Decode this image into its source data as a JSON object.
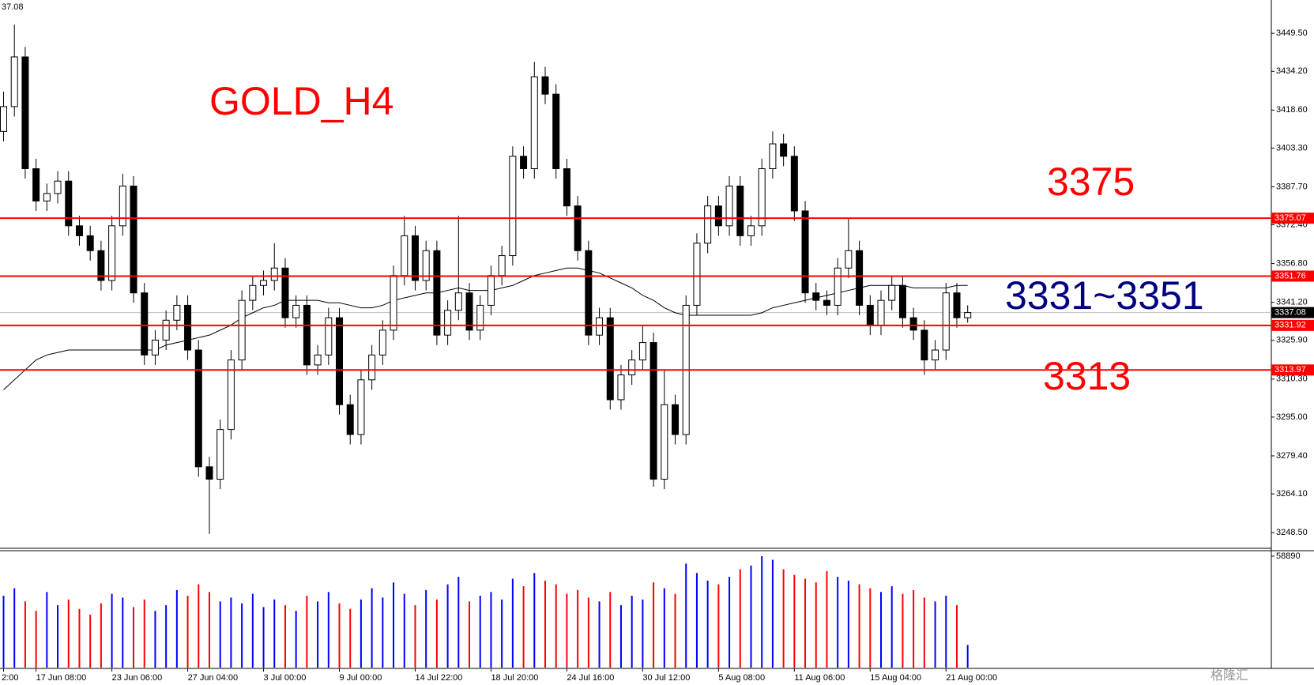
{
  "chart_data": {
    "type": "candlestick",
    "title": "GOLD_H4",
    "corner_label": "37.08",
    "annotations": [
      {
        "text": "3375",
        "color": "#ff0000"
      },
      {
        "text": "3331~3351",
        "color": "#000080"
      },
      {
        "text": "3313",
        "color": "#ff0000"
      }
    ],
    "watermark": "格隆汇",
    "categories": [
      "2:00",
      null,
      null,
      "17 Jun 08:00",
      null,
      null,
      null,
      null,
      null,
      null,
      "23 Jun 06:00",
      null,
      null,
      null,
      null,
      null,
      null,
      "27 Jun 04:00",
      null,
      null,
      null,
      null,
      null,
      null,
      "3 Jul 00:00",
      null,
      null,
      null,
      null,
      null,
      null,
      "9 Jul 00:00",
      null,
      null,
      null,
      null,
      null,
      null,
      "14 Jul 22:00",
      null,
      null,
      null,
      null,
      null,
      null,
      "18 Jul 20:00",
      null,
      null,
      null,
      null,
      null,
      null,
      "24 Jul 16:00",
      null,
      null,
      null,
      null,
      null,
      null,
      "30 Jul 12:00",
      null,
      null,
      null,
      null,
      null,
      null,
      "5 Aug 08:00",
      null,
      null,
      null,
      null,
      null,
      null,
      "11 Aug 06:00",
      null,
      null,
      null,
      null,
      null,
      null,
      "15 Aug 04:00",
      null,
      null,
      null,
      null,
      null,
      null,
      "21 Aug 00:00",
      null,
      null
    ],
    "open": [
      3410,
      3420,
      3440,
      3395,
      3382,
      3385,
      3390,
      3372,
      3368,
      3362,
      3350,
      3372,
      3388,
      3345,
      3320,
      3326,
      3334,
      3340,
      3322,
      3275,
      3270,
      3290,
      3318,
      3342,
      3348,
      3350,
      3355,
      3335,
      3340,
      3316,
      3320,
      3335,
      3300,
      3288,
      3310,
      3320,
      3330,
      3352,
      3368,
      3350,
      3362,
      3328,
      3338,
      3345,
      3330,
      3340,
      3352,
      3360,
      3400,
      3395,
      3432,
      3425,
      3395,
      3380,
      3362,
      3328,
      3335,
      3302,
      3312,
      3318,
      3325,
      3270,
      3300,
      3288,
      3340,
      3365,
      3380,
      3372,
      3388,
      3368,
      3372,
      3395,
      3405,
      3400,
      3378,
      3345,
      3342,
      3340,
      3355,
      3362,
      3340,
      3332,
      3342,
      3348,
      3335,
      3330,
      3318,
      3322,
      3345,
      3335
    ],
    "high": [
      3426,
      3453,
      3444,
      3399,
      3389,
      3394,
      3394,
      3376,
      3372,
      3366,
      3376,
      3393,
      3392,
      3349,
      3330,
      3338,
      3344,
      3344,
      3326,
      3279,
      3294,
      3322,
      3346,
      3352,
      3354,
      3365,
      3359,
      3344,
      3344,
      3324,
      3339,
      3339,
      3304,
      3314,
      3324,
      3334,
      3356,
      3376,
      3372,
      3366,
      3366,
      3342,
      3376,
      3349,
      3344,
      3356,
      3364,
      3404,
      3404,
      3438,
      3436,
      3429,
      3399,
      3384,
      3366,
      3339,
      3339,
      3316,
      3322,
      3332,
      3329,
      3314,
      3304,
      3344,
      3369,
      3384,
      3384,
      3392,
      3392,
      3376,
      3399,
      3410,
      3409,
      3404,
      3382,
      3349,
      3346,
      3359,
      3375,
      3366,
      3344,
      3346,
      3352,
      3352,
      3339,
      3334,
      3326,
      3349,
      3349,
      3340
    ],
    "low": [
      3406,
      3416,
      3391,
      3378,
      3378,
      3381,
      3368,
      3364,
      3358,
      3346,
      3346,
      3368,
      3341,
      3316,
      3316,
      3322,
      3330,
      3318,
      3271,
      3248,
      3266,
      3286,
      3314,
      3338,
      3344,
      3346,
      3331,
      3331,
      3312,
      3312,
      3316,
      3296,
      3284,
      3284,
      3306,
      3316,
      3326,
      3348,
      3346,
      3346,
      3324,
      3324,
      3334,
      3326,
      3326,
      3336,
      3348,
      3356,
      3391,
      3391,
      3421,
      3391,
      3376,
      3358,
      3324,
      3324,
      3298,
      3298,
      3308,
      3314,
      3267,
      3266,
      3284,
      3284,
      3336,
      3361,
      3368,
      3368,
      3364,
      3364,
      3368,
      3391,
      3396,
      3374,
      3341,
      3338,
      3336,
      3336,
      3351,
      3336,
      3328,
      3328,
      3338,
      3331,
      3326,
      3312,
      3314,
      3318,
      3331,
      3333
    ],
    "close": [
      3420,
      3440,
      3395,
      3382,
      3385,
      3390,
      3372,
      3368,
      3362,
      3350,
      3372,
      3388,
      3345,
      3320,
      3326,
      3334,
      3340,
      3322,
      3275,
      3270,
      3290,
      3318,
      3342,
      3348,
      3350,
      3355,
      3335,
      3340,
      3316,
      3320,
      3335,
      3300,
      3288,
      3310,
      3320,
      3330,
      3352,
      3368,
      3350,
      3362,
      3328,
      3338,
      3345,
      3330,
      3340,
      3352,
      3360,
      3400,
      3395,
      3432,
      3425,
      3395,
      3380,
      3362,
      3328,
      3335,
      3302,
      3312,
      3318,
      3325,
      3270,
      3300,
      3288,
      3340,
      3365,
      3380,
      3372,
      3388,
      3368,
      3372,
      3395,
      3405,
      3400,
      3378,
      3345,
      3342,
      3340,
      3355,
      3362,
      3340,
      3332,
      3342,
      3348,
      3335,
      3330,
      3318,
      3322,
      3345,
      3335,
      3337.08
    ],
    "moving_average": [
      3306,
      3310,
      3314,
      3318,
      3320,
      3321,
      3322,
      3322,
      3322,
      3322,
      3322,
      3322,
      3322,
      3322,
      3322,
      3324,
      3325,
      3326,
      3327,
      3328,
      3330,
      3332,
      3335,
      3337,
      3339,
      3340,
      3342,
      3342,
      3342,
      3342,
      3341,
      3341,
      3340,
      3339,
      3339,
      3340,
      3342,
      3343,
      3344,
      3345,
      3345,
      3346,
      3347,
      3346,
      3346,
      3346,
      3347,
      3348,
      3350,
      3352,
      3353,
      3354,
      3355,
      3355,
      3354,
      3353,
      3351,
      3349,
      3347,
      3344,
      3342,
      3339,
      3337,
      3336,
      3336,
      3336,
      3336,
      3336,
      3336,
      3336,
      3337,
      3339,
      3340,
      3341,
      3342,
      3343,
      3344,
      3345,
      3346,
      3347,
      3348,
      3348,
      3348,
      3348,
      3347,
      3347,
      3347,
      3347,
      3348,
      3348
    ],
    "volumes": [
      38000,
      42000,
      35000,
      30000,
      40000,
      33000,
      36000,
      31000,
      28000,
      34000,
      39000,
      37000,
      32000,
      36000,
      30000,
      33000,
      41000,
      38000,
      44000,
      40000,
      35000,
      37000,
      34000,
      39000,
      32000,
      36000,
      33000,
      30000,
      38000,
      35000,
      40000,
      34000,
      31000,
      36000,
      42000,
      37000,
      45000,
      39000,
      33000,
      41000,
      36000,
      44000,
      48000,
      35000,
      38000,
      40000,
      36000,
      47000,
      43000,
      50000,
      46000,
      44000,
      39000,
      41000,
      37000,
      35000,
      40000,
      33000,
      38000,
      36000,
      45000,
      42000,
      39000,
      55000,
      50000,
      46000,
      44000,
      48000,
      52000,
      54000,
      58890,
      57000,
      52000,
      49000,
      47000,
      45000,
      51000,
      48000,
      46000,
      44000,
      42000,
      40000,
      43000,
      39000,
      41000,
      37000,
      35000,
      38000,
      33000,
      12000
    ],
    "up_color": "#ffffff",
    "down_color": "#000000",
    "wick_color": "#000000",
    "ma_color": "#000000",
    "volume_up_color": "#0000ff",
    "volume_down_color": "#ff0000",
    "ylim": [
      3242.5,
      3462.9
    ],
    "yticks": [
      {
        "value": 3449.5,
        "label": "3449.50"
      },
      {
        "value": 3434.2,
        "label": "3434.20"
      },
      {
        "value": 3418.6,
        "label": "3418.60"
      },
      {
        "value": 3403.3,
        "label": "3403.30"
      },
      {
        "value": 3387.7,
        "label": "3387.70"
      },
      {
        "value": 3372.4,
        "label": "3372.40"
      },
      {
        "value": 3356.8,
        "label": "3356.80"
      },
      {
        "value": 3341.2,
        "label": "3341.20"
      },
      {
        "value": 3325.9,
        "label": "3325.90"
      },
      {
        "value": 3310.3,
        "label": "3310.30"
      },
      {
        "value": 3295.0,
        "label": "3295.00"
      },
      {
        "value": 3279.4,
        "label": "3279.40"
      },
      {
        "value": 3264.1,
        "label": "3264.10"
      },
      {
        "value": 3248.5,
        "label": "3248.50"
      }
    ],
    "volume_ylim": [
      0,
      58890
    ],
    "volume_yticks": [
      58890
    ],
    "hlines": [
      {
        "value": 3375.07,
        "color": "#ff0000"
      },
      {
        "value": 3351.76,
        "color": "#ff0000"
      },
      {
        "value": 3331.92,
        "color": "#ff0000"
      },
      {
        "value": 3313.97,
        "color": "#ff0000"
      }
    ],
    "last_price": 3337.08,
    "last_price_color": "#c0c0c0",
    "grid": false
  }
}
